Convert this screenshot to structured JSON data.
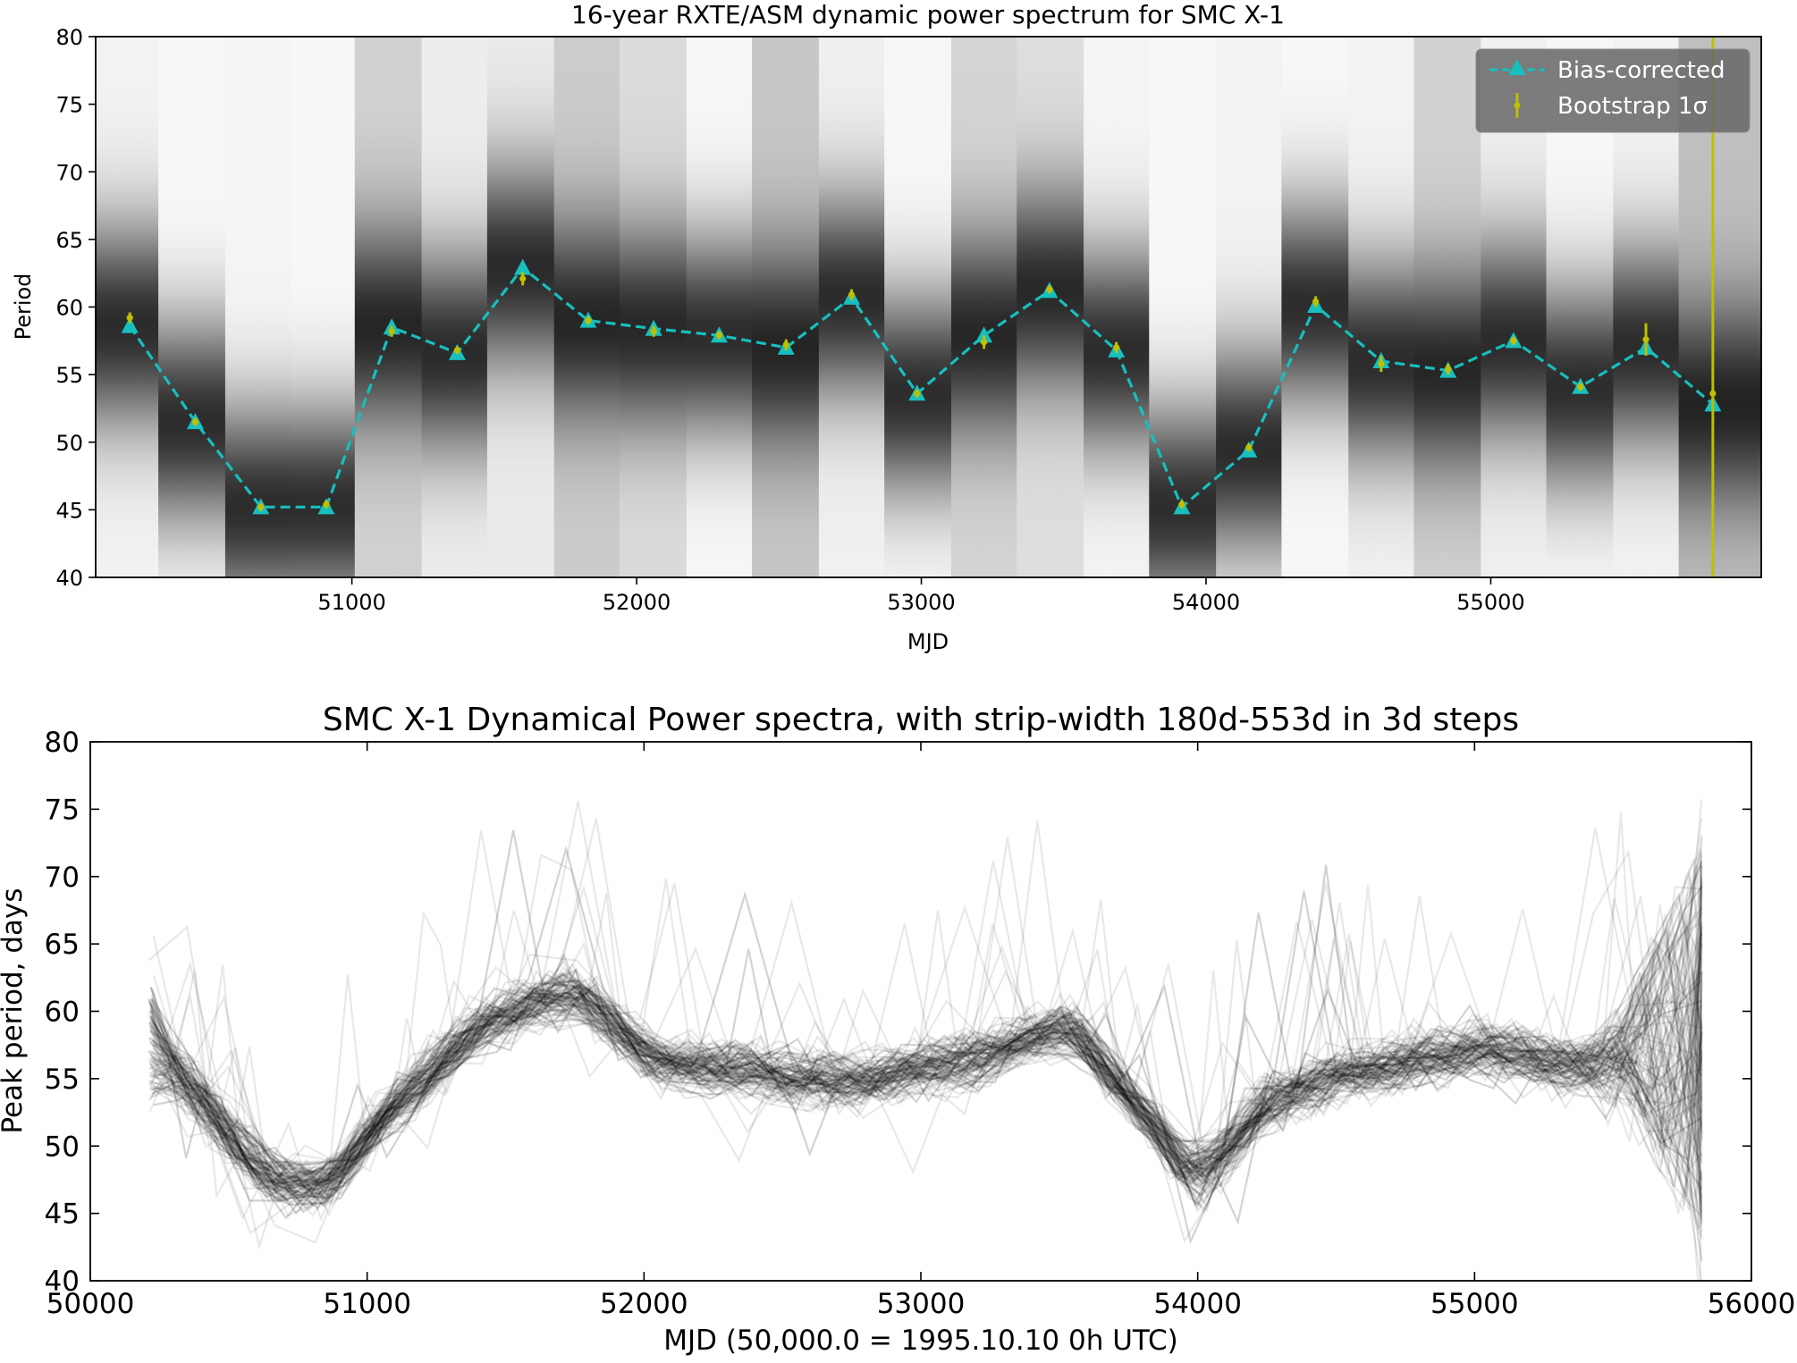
{
  "chart_data": [
    {
      "type": "heatmap",
      "title": "16-year RXTE/ASM dynamic power spectrum for SMC X-1",
      "xlabel": "MJD",
      "ylabel": "Period",
      "xlim": [
        50100,
        55950
      ],
      "ylim": [
        40,
        80
      ],
      "x_ticks": [
        51000,
        52000,
        53000,
        54000,
        55000
      ],
      "y_ticks": [
        40,
        45,
        50,
        55,
        60,
        65,
        70,
        75,
        80
      ],
      "x_tick_labels": [
        "51000",
        "52000",
        "53000",
        "54000",
        "55000"
      ],
      "y_tick_labels": [
        "40",
        "45",
        "50",
        "55",
        "60",
        "65",
        "70",
        "75",
        "80"
      ],
      "legend": {
        "placement": "top-right",
        "entries": [
          "Bias-corrected",
          "Bootstrap 1σ"
        ]
      },
      "colors": {
        "bias_corrected": "#17bfbf",
        "bootstrap": "#bfbf00",
        "legend_bg": "#666666"
      },
      "strips": [
        {
          "x0": 50100,
          "x1": 50320,
          "peak": 58.6,
          "background": 0.95
        },
        {
          "x0": 50320,
          "x1": 50555,
          "peak": 51.5,
          "background": 0.97
        },
        {
          "x0": 50555,
          "x1": 50785,
          "peak": 45.2,
          "background": 0.96
        },
        {
          "x0": 50785,
          "x1": 51010,
          "peak": 45.2,
          "background": 0.97
        },
        {
          "x0": 51010,
          "x1": 51245,
          "peak": 58.5,
          "background": 0.82
        },
        {
          "x0": 51245,
          "x1": 51475,
          "peak": 56.6,
          "background": 0.93
        },
        {
          "x0": 51475,
          "x1": 51710,
          "peak": 62.9,
          "background": 0.92
        },
        {
          "x0": 51710,
          "x1": 51940,
          "peak": 59.0,
          "background": 0.8
        },
        {
          "x0": 51940,
          "x1": 52175,
          "peak": 58.4,
          "background": 0.86
        },
        {
          "x0": 52175,
          "x1": 52405,
          "peak": 57.9,
          "background": 0.97
        },
        {
          "x0": 52405,
          "x1": 52640,
          "peak": 57.0,
          "background": 0.78
        },
        {
          "x0": 52640,
          "x1": 52870,
          "peak": 60.7,
          "background": 0.94
        },
        {
          "x0": 52870,
          "x1": 53105,
          "peak": 53.6,
          "background": 0.97
        },
        {
          "x0": 53105,
          "x1": 53335,
          "peak": 57.9,
          "background": 0.83
        },
        {
          "x0": 53335,
          "x1": 53570,
          "peak": 61.2,
          "background": 0.87
        },
        {
          "x0": 53570,
          "x1": 53800,
          "peak": 56.8,
          "background": 0.96
        },
        {
          "x0": 53800,
          "x1": 54035,
          "peak": 45.2,
          "background": 0.97
        },
        {
          "x0": 54035,
          "x1": 54265,
          "peak": 49.4,
          "background": 0.95
        },
        {
          "x0": 54265,
          "x1": 54500,
          "peak": 60.1,
          "background": 0.97
        },
        {
          "x0": 54500,
          "x1": 54730,
          "peak": 56.0,
          "background": 0.95
        },
        {
          "x0": 54730,
          "x1": 54965,
          "peak": 55.3,
          "background": 0.82
        },
        {
          "x0": 54965,
          "x1": 55195,
          "peak": 57.5,
          "background": 0.94
        },
        {
          "x0": 55195,
          "x1": 55430,
          "peak": 54.1,
          "background": 0.97
        },
        {
          "x0": 55430,
          "x1": 55660,
          "peak": 57.0,
          "background": 0.95
        },
        {
          "x0": 55660,
          "x1": 55950,
          "peak": 52.8,
          "background": 0.75
        }
      ],
      "series": [
        {
          "name": "Bias-corrected",
          "x": [
            50220,
            50450,
            50680,
            50910,
            51140,
            51370,
            51600,
            51830,
            52060,
            52290,
            52525,
            52755,
            52985,
            53220,
            53450,
            53685,
            53915,
            54150,
            54385,
            54615,
            54850,
            55080,
            55315,
            55545,
            55780
          ],
          "y": [
            58.6,
            51.5,
            45.2,
            45.2,
            58.5,
            56.6,
            62.9,
            59.0,
            58.4,
            57.9,
            57.0,
            60.7,
            53.6,
            57.9,
            61.2,
            56.8,
            45.2,
            49.4,
            60.1,
            56.0,
            55.3,
            57.5,
            54.1,
            57.0,
            52.8
          ]
        },
        {
          "name": "Bootstrap 1σ",
          "x": [
            50220,
            50450,
            50680,
            50910,
            51140,
            51370,
            51600,
            51830,
            52060,
            52290,
            52525,
            52755,
            52985,
            53220,
            53450,
            53685,
            53915,
            54150,
            54385,
            54615,
            54850,
            55080,
            55315,
            55545,
            55780
          ],
          "y": [
            59.2,
            51.5,
            45.2,
            45.4,
            58.2,
            56.8,
            62.1,
            59.0,
            58.2,
            57.9,
            57.2,
            60.9,
            53.6,
            57.4,
            61.3,
            57.0,
            45.4,
            49.6,
            60.4,
            55.8,
            55.4,
            57.5,
            54.1,
            57.6,
            53.6
          ],
          "err": [
            0.4,
            0.3,
            0.3,
            0.3,
            0.4,
            0.3,
            0.5,
            0.3,
            0.4,
            0.3,
            0.4,
            0.4,
            0.3,
            0.5,
            0.3,
            0.4,
            0.3,
            0.3,
            0.4,
            0.6,
            0.4,
            0.3,
            0.3,
            1.2,
            40
          ]
        }
      ]
    },
    {
      "type": "line",
      "title": "SMC X-1 Dynamical Power spectra, with strip-width 180d-553d in 3d steps",
      "xlabel": "MJD (50,000.0 = 1995.10.10 0h UTC)",
      "ylabel": "Peak period, days",
      "xlim": [
        50000,
        56000
      ],
      "ylim": [
        40,
        80
      ],
      "x_ticks": [
        50000,
        51000,
        52000,
        53000,
        54000,
        55000,
        56000
      ],
      "y_ticks": [
        40,
        45,
        50,
        55,
        60,
        65,
        70,
        75,
        80
      ],
      "x_tick_labels": [
        "50000",
        "51000",
        "52000",
        "53000",
        "54000",
        "55000",
        "56000"
      ],
      "y_tick_labels": [
        "40",
        "45",
        "50",
        "55",
        "60",
        "65",
        "70",
        "75",
        "80"
      ],
      "line_count": 125,
      "line_color": "#000000",
      "line_opacity": 0.09,
      "base_curve": {
        "x": [
          50210,
          50400,
          50650,
          50850,
          51100,
          51450,
          51750,
          52050,
          52300,
          52550,
          52850,
          53200,
          53550,
          53800,
          54000,
          54250,
          54550,
          54850,
          55050,
          55300,
          55500,
          55820
        ],
        "y": [
          57.5,
          53.5,
          47.5,
          47.0,
          53.0,
          59.5,
          61.5,
          56.0,
          56.0,
          55.0,
          55.0,
          56.5,
          59.0,
          52.5,
          47.0,
          53.5,
          55.5,
          56.5,
          57.5,
          56.0,
          56.0,
          53.0
        ]
      }
    }
  ]
}
